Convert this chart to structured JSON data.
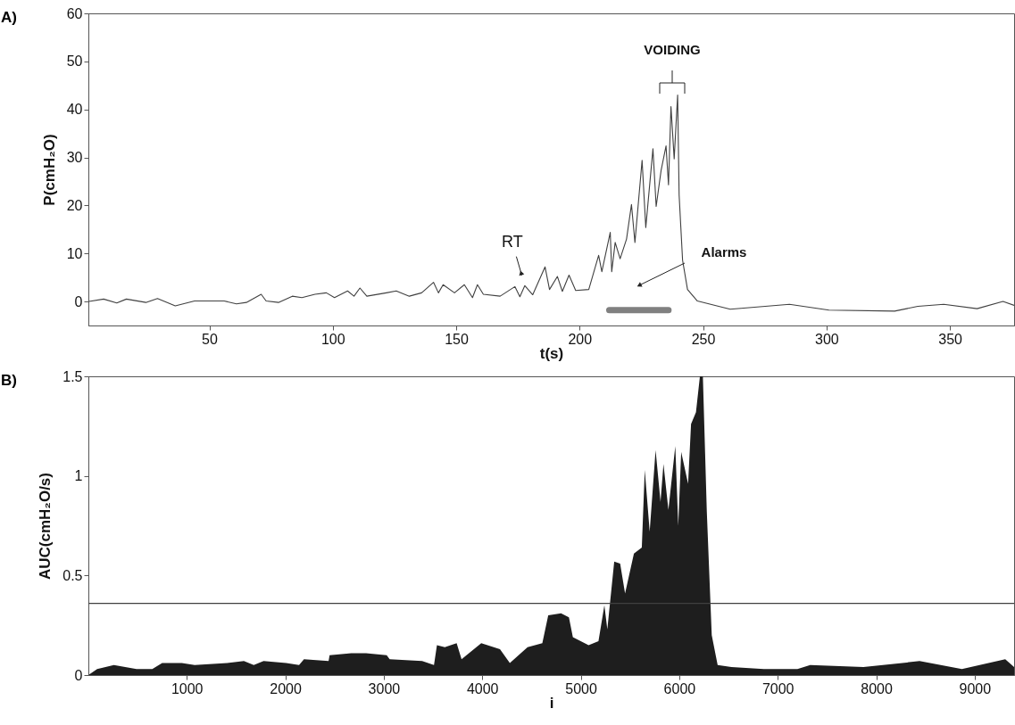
{
  "chart_data": [
    {
      "type": "line",
      "xlabel": "t(s)",
      "ylabel": "P(cmH₂O)",
      "xlim": [
        1,
        376
      ],
      "ylim": [
        -5,
        60
      ],
      "xticks": [
        50,
        100,
        150,
        200,
        250,
        300,
        350
      ],
      "yticks": [
        0,
        10,
        20,
        30,
        40,
        50,
        60
      ],
      "series": [
        {
          "color": "#404040",
          "x": [
            1.3,
            7.2,
            12.5,
            16.4,
            24.3,
            29,
            36.2,
            44,
            56,
            61,
            65,
            71,
            73,
            78,
            83.6,
            87.5,
            92.8,
            97.4,
            100.7,
            106,
            108.6,
            111,
            113.8,
            121.7,
            125.7,
            131,
            136,
            140.8,
            142.8,
            144.7,
            149.3,
            153.3,
            156.6,
            158.6,
            161,
            167.8,
            173.8,
            175.8,
            177.8,
            181,
            186,
            187.8,
            191,
            193,
            195.7,
            198.4,
            203.7,
            207.7,
            209,
            212.4,
            213,
            214.4,
            216.4,
            219,
            221,
            222.4,
            225.3,
            226.8,
            229.7,
            231,
            233,
            235,
            236,
            237,
            238.3,
            239.7,
            240.3,
            241.7,
            243.7,
            247.7,
            261,
            285,
            301,
            327.6,
            337,
            347.5,
            361,
            371.5,
            376
          ],
          "values": [
            0,
            0.5,
            -0.3,
            0.5,
            -0.2,
            0.6,
            -0.9,
            0.1,
            0.1,
            -0.5,
            -0.2,
            1.5,
            0.1,
            -0.2,
            1.1,
            0.8,
            1.5,
            1.8,
            0.8,
            2.2,
            1.1,
            2.8,
            1.1,
            1.8,
            2.2,
            1.1,
            1.8,
            4,
            1.8,
            3.5,
            1.8,
            3.5,
            0.8,
            3.5,
            1.5,
            1.1,
            3.1,
            1,
            3.3,
            1.4,
            7.2,
            2.5,
            5.2,
            2.1,
            5.5,
            2.3,
            2.5,
            9.6,
            6.2,
            14.4,
            6.2,
            12.3,
            8.9,
            13,
            20.2,
            12.3,
            29.4,
            15.4,
            31.8,
            19.8,
            27.3,
            32.4,
            24.3,
            40.6,
            29.7,
            43,
            22.2,
            8.6,
            2.5,
            0.1,
            -1.6,
            -0.6,
            -1.8,
            -2,
            -1,
            -0.6,
            -1.5,
            0,
            -0.8
          ]
        },
        {
          "color": "#808080",
          "x": [
            212,
            236
          ],
          "values": [
            -1.8,
            -1.8
          ]
        }
      ],
      "annotations": [
        "A)",
        {
          "text": "RT",
          "x": 177.8,
          "y": 3.3
        },
        "VOIDING",
        "Alarms"
      ]
    },
    {
      "type": "area",
      "xlabel": "i",
      "ylabel": "AUC(cmH₂O/s)",
      "color": "#1e1e1e",
      "xlim": [
        1,
        9400
      ],
      "ylim": [
        0,
        1.5
      ],
      "xticks": [
        1000,
        2000,
        3000,
        4000,
        5000,
        6000,
        7000,
        8000,
        9000
      ],
      "yticks": [
        0,
        0.5,
        1,
        1.5
      ],
      "x": [
        1,
        90,
        260,
        490,
        650,
        750,
        950,
        1080,
        1410,
        1580,
        1680,
        1780,
        2010,
        2140,
        2190,
        2440,
        2450,
        2670,
        2820,
        3030,
        3060,
        3390,
        3510,
        3540,
        3620,
        3740,
        3790,
        3990,
        4180,
        4280,
        4460,
        4610,
        4670,
        4800,
        4880,
        4920,
        5080,
        5180,
        5240,
        5270,
        5340,
        5400,
        5450,
        5540,
        5620,
        5650,
        5700,
        5760,
        5810,
        5840,
        5890,
        5960,
        5990,
        6020,
        6090,
        6120,
        6170,
        6210,
        6240,
        6280,
        6330,
        6390,
        6530,
        6860,
        7200,
        7330,
        7870,
        8440,
        8870,
        9310,
        9400
      ],
      "values": [
        0,
        0.03,
        0.05,
        0.03,
        0.03,
        0.06,
        0.06,
        0.05,
        0.06,
        0.07,
        0.05,
        0.07,
        0.06,
        0.05,
        0.08,
        0.07,
        0.1,
        0.11,
        0.11,
        0.1,
        0.08,
        0.07,
        0.05,
        0.15,
        0.14,
        0.16,
        0.08,
        0.16,
        0.13,
        0.06,
        0.14,
        0.16,
        0.3,
        0.31,
        0.29,
        0.19,
        0.15,
        0.17,
        0.35,
        0.23,
        0.57,
        0.56,
        0.41,
        0.61,
        0.64,
        1.03,
        0.72,
        1.13,
        0.87,
        1.06,
        0.83,
        1.15,
        0.75,
        1.12,
        0.96,
        1.26,
        1.32,
        1.5,
        1.5,
        0.82,
        0.2,
        0.05,
        0.04,
        0.03,
        0.03,
        0.05,
        0.04,
        0.07,
        0.03,
        0.08,
        0.04
      ],
      "ref_lines": [
        {
          "axis": "y",
          "value": 0.36,
          "color": "#404040"
        }
      ],
      "annotations": [
        "B)"
      ]
    }
  ]
}
